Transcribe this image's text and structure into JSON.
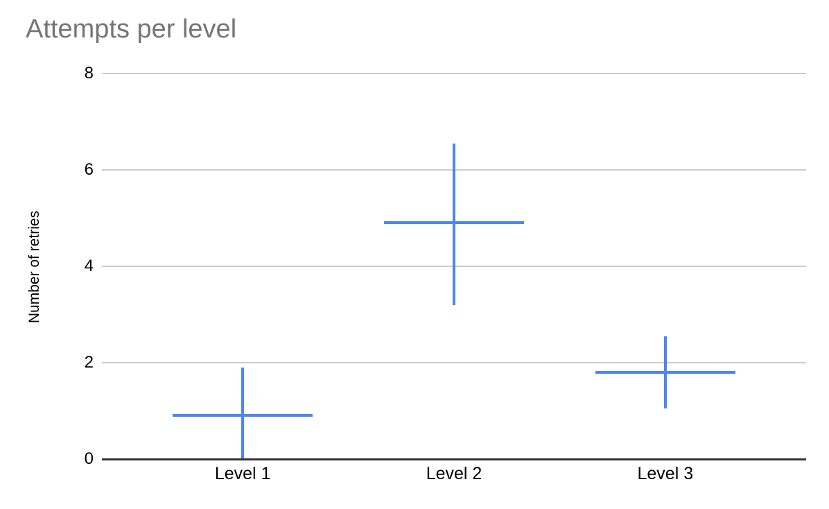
{
  "chart_data": {
    "type": "scatter",
    "title": "Attempts per level",
    "xlabel": "",
    "ylabel": "Number of retries",
    "categories": [
      "Level 1",
      "Level 2",
      "Level 3"
    ],
    "series": [
      {
        "name": "Number of retries",
        "marker": "cross-with-error-bars",
        "points": [
          {
            "category": "Level 1",
            "value": 0.9,
            "whisker_low": 0.0,
            "whisker_high": 1.9
          },
          {
            "category": "Level 2",
            "value": 4.9,
            "whisker_low": 3.2,
            "whisker_high": 6.55
          },
          {
            "category": "Level 3",
            "value": 1.8,
            "whisker_low": 1.05,
            "whisker_high": 2.55
          }
        ]
      }
    ],
    "ylim": [
      0,
      8
    ],
    "y_ticks": [
      0,
      2,
      4,
      6,
      8
    ],
    "grid": true,
    "legend_position": "none"
  },
  "colors": {
    "series_blue": "#4e86ec",
    "title_gray": "#757575",
    "gridline_gray": "#cccccc",
    "axis_dark": "#333333",
    "label_black": "#000000",
    "background": "#ffffff"
  }
}
